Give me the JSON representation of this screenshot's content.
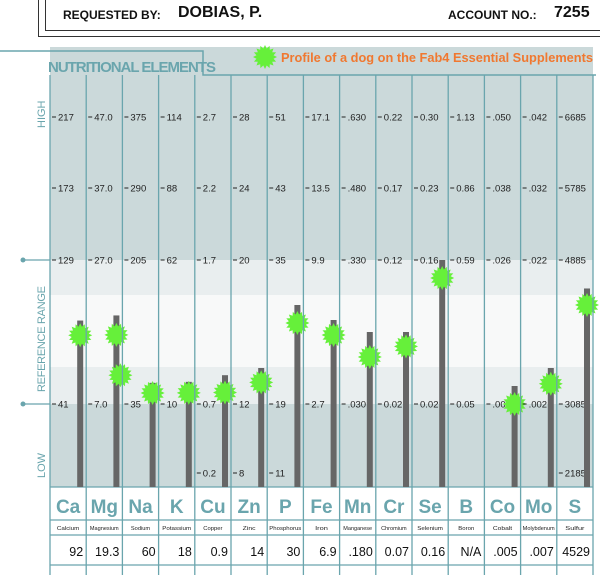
{
  "header": {
    "requested_by_label": "REQUESTED BY:",
    "requested_by_value": "DOBIAS, P.",
    "account_label": "ACCOUNT NO.:",
    "account_value": "7255"
  },
  "colors": {
    "teal": "#6aa5ad",
    "band_dark": "#cbd9da",
    "band_light": "#e9eeef",
    "band_white": "#f8f9f9",
    "bar": "#666666",
    "star": "#66f03a",
    "legend_text": "#f07830"
  },
  "chart_data": {
    "type": "bar",
    "title": "NUTRITIONAL ELEMENTS",
    "legend": {
      "label": "Profile of a dog on the Fab4 Essential Supplements",
      "icon": "star-burst",
      "placement": "top-right"
    },
    "axis_labels": {
      "high": "HIGH",
      "range": "REFERENCE RANGE",
      "low": "LOW"
    },
    "columns": [
      {
        "symbol": "Ca",
        "name": "Calcium",
        "ticks": [
          "217",
          "173",
          "129",
          "41",
          ""
        ],
        "tick_values": [
          217,
          173,
          129,
          41,
          null
        ],
        "value_label": "92",
        "value": 92,
        "profile": [
          83
        ]
      },
      {
        "symbol": "Mg",
        "name": "Magnesium",
        "ticks": [
          "47.0",
          "37.0",
          "27.0",
          "7.0",
          ""
        ],
        "tick_values": [
          47,
          37,
          27,
          7,
          null
        ],
        "value_label": "19.3",
        "value": 19.3,
        "profile": [
          16.6,
          11
        ]
      },
      {
        "symbol": "Na",
        "name": "Sodium",
        "ticks": [
          "375",
          "290",
          "205",
          "35",
          ""
        ],
        "tick_values": [
          375,
          290,
          205,
          35,
          null
        ],
        "value_label": "60",
        "value": 60,
        "profile": [
          48
        ]
      },
      {
        "symbol": "K",
        "name": "Potassium",
        "ticks": [
          "114",
          "88",
          "62",
          "10",
          ""
        ],
        "tick_values": [
          114,
          88,
          62,
          10,
          null
        ],
        "value_label": "18",
        "value": 18,
        "profile": [
          14
        ]
      },
      {
        "symbol": "Cu",
        "name": "Copper",
        "ticks": [
          "2.7",
          "2.2",
          "1.7",
          "0.7",
          "0.2"
        ],
        "tick_values": [
          2.7,
          2.2,
          1.7,
          0.7,
          0.2
        ],
        "value_label": "0.9",
        "value": 0.9,
        "profile": [
          0.78
        ]
      },
      {
        "symbol": "Zn",
        "name": "Zinc",
        "ticks": [
          "28",
          "24",
          "20",
          "12",
          "8"
        ],
        "tick_values": [
          28,
          24,
          20,
          12,
          8
        ],
        "value_label": "14",
        "value": 14,
        "profile": [
          13.2
        ]
      },
      {
        "symbol": "P",
        "name": "Phosphorus",
        "ticks": [
          "51",
          "43",
          "35",
          "19",
          "11"
        ],
        "tick_values": [
          51,
          43,
          35,
          19,
          11
        ],
        "value_label": "30",
        "value": 30,
        "profile": [
          28
        ]
      },
      {
        "symbol": "Fe",
        "name": "Iron",
        "ticks": [
          "17.1",
          "13.5",
          "9.9",
          "2.7",
          ""
        ],
        "tick_values": [
          17.1,
          13.5,
          9.9,
          2.7,
          null
        ],
        "value_label": "6.9",
        "value": 6.9,
        "profile": [
          6.15
        ]
      },
      {
        "symbol": "Mn",
        "name": "Manganese",
        "ticks": [
          ".630",
          ".480",
          ".330",
          ".030",
          ""
        ],
        "tick_values": [
          0.63,
          0.48,
          0.33,
          0.03,
          null
        ],
        "value_label": ".180",
        "value": 0.18,
        "profile": [
          0.128
        ]
      },
      {
        "symbol": "Cr",
        "name": "Chromium",
        "ticks": [
          "0.22",
          "0.17",
          "0.12",
          "0.02",
          ""
        ],
        "tick_values": [
          0.22,
          0.17,
          0.12,
          0.02,
          null
        ],
        "value_label": "0.07",
        "value": 0.07,
        "profile": [
          0.06
        ]
      },
      {
        "symbol": "Se",
        "name": "Selenium",
        "ticks": [
          "0.30",
          "0.23",
          "0.16",
          "0.02",
          ""
        ],
        "tick_values": [
          0.3,
          0.23,
          0.16,
          0.02,
          null
        ],
        "value_label": "0.16",
        "value": 0.16,
        "profile": [
          0.1425
        ]
      },
      {
        "symbol": "B",
        "name": "Boron",
        "ticks": [
          "1.13",
          "0.86",
          "0.59",
          "0.05",
          ""
        ],
        "tick_values": [
          1.13,
          0.86,
          0.59,
          0.05,
          null
        ],
        "value_label": "N/A",
        "value": null,
        "profile": []
      },
      {
        "symbol": "Co",
        "name": "Cobalt",
        "ticks": [
          ".050",
          ".038",
          ".026",
          ".002",
          ""
        ],
        "tick_values": [
          0.05,
          0.038,
          0.026,
          0.002,
          null
        ],
        "value_label": ".005",
        "value": 0.005,
        "profile": [
          0.002
        ]
      },
      {
        "symbol": "Mo",
        "name": "Molybdenum",
        "ticks": [
          ".042",
          ".032",
          ".022",
          ".002",
          ""
        ],
        "tick_values": [
          0.042,
          0.032,
          0.022,
          0.002,
          null
        ],
        "value_label": ".007",
        "value": 0.007,
        "profile": [
          0.0048
        ]
      },
      {
        "symbol": "S",
        "name": "Sulfur",
        "ticks": [
          "6685",
          "5785",
          "4885",
          "3085",
          "2185"
        ],
        "tick_values": [
          6685,
          5785,
          4885,
          3085,
          2185
        ],
        "value_label": "4529",
        "value": 4529,
        "profile": [
          4323
        ]
      }
    ]
  }
}
